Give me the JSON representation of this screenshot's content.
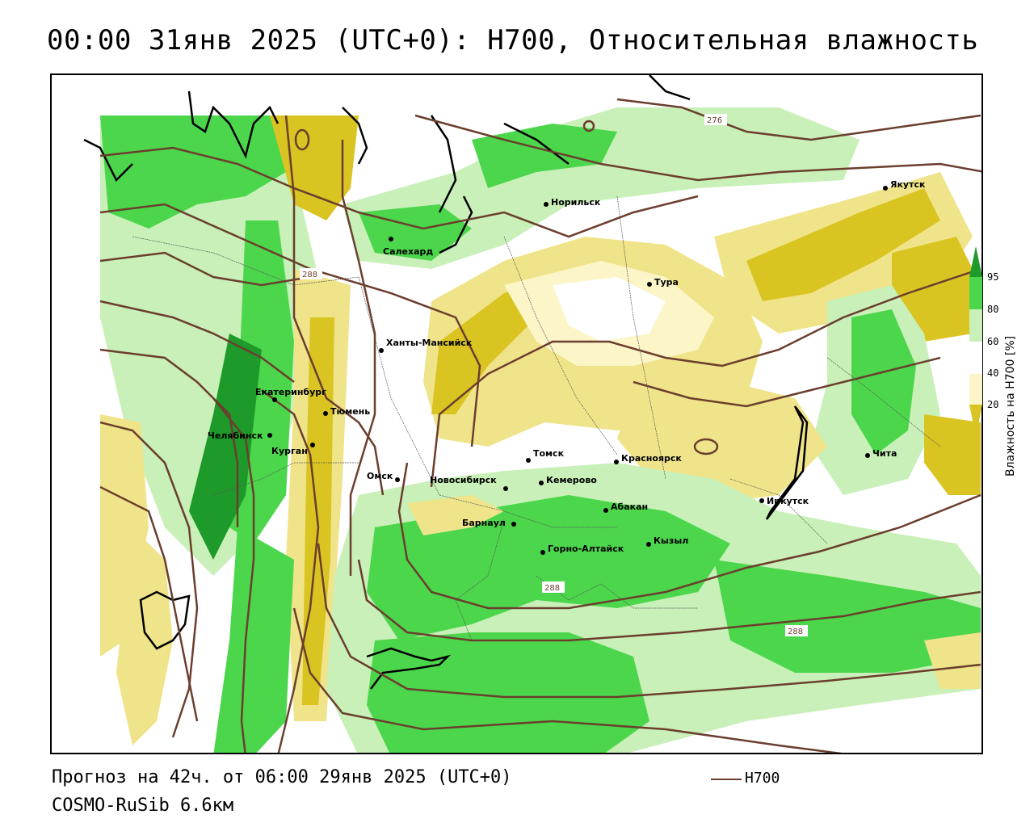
{
  "title": "00:00 31янв 2025 (UTC+0): H700, Относительная влажность",
  "footer": {
    "forecast": "Прогноз на 42ч. от 06:00 29янв 2025 (UTC+0)",
    "model": "COSMO-RuSib 6.6км"
  },
  "legend": {
    "contour_label": "H700",
    "contour_color": "#6b3e2e"
  },
  "colorbar": {
    "title": "Влажность на H700 [%]",
    "ticks": [
      "95",
      "80",
      "60",
      "40",
      "20"
    ],
    "colors": {
      "dry": "#d9c422",
      "medium_dry": "#f0e48a",
      "light_dry": "#fbf5c8",
      "light_wet": "#c8f0b8",
      "wet": "#4cd64c",
      "very_wet": "#1e9a2a"
    }
  },
  "contours": {
    "labels": [
      "276",
      "288",
      "288",
      "288"
    ]
  },
  "cities": [
    {
      "name": "Якутск"
    },
    {
      "name": "Норильск"
    },
    {
      "name": "Салехард"
    },
    {
      "name": "Тура"
    },
    {
      "name": "Ханты-Мансийск"
    },
    {
      "name": "Екатеринбург"
    },
    {
      "name": "Тюмень"
    },
    {
      "name": "Челябинск"
    },
    {
      "name": "Курган"
    },
    {
      "name": "Омск"
    },
    {
      "name": "Новосибирск"
    },
    {
      "name": "Томск"
    },
    {
      "name": "Кемерово"
    },
    {
      "name": "Красноярск"
    },
    {
      "name": "Абакан"
    },
    {
      "name": "Барнаул"
    },
    {
      "name": "Горно-Алтайск"
    },
    {
      "name": "Кызыл"
    },
    {
      "name": "Иркутск"
    },
    {
      "name": "Чита"
    }
  ]
}
